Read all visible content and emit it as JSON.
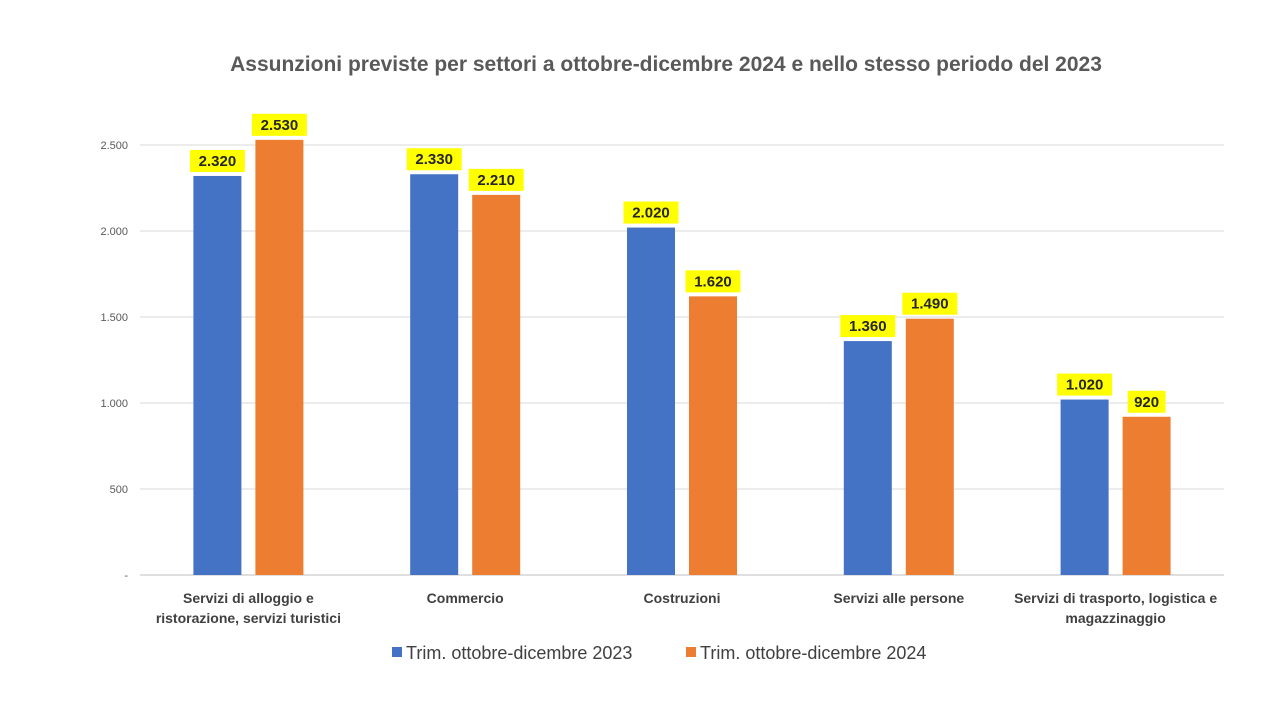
{
  "chart_data": {
    "type": "bar",
    "title": "Assunzioni previste per settori a ottobre-dicembre 2024 e nello stesso periodo del 2023",
    "categories": [
      [
        "Servizi di alloggio e",
        "ristorazione, servizi turistici"
      ],
      [
        "Commercio"
      ],
      [
        "Costruzioni"
      ],
      [
        "Servizi alle persone"
      ],
      [
        "Servizi di trasporto, logistica e",
        "magazzinaggio"
      ]
    ],
    "series": [
      {
        "name": "Trim. ottobre-dicembre 2023",
        "color": "#4472C4",
        "values": [
          2320,
          2330,
          2020,
          1360,
          1020
        ]
      },
      {
        "name": "Trim. ottobre-dicembre 2024",
        "color": "#ED7D31",
        "values": [
          2530,
          2210,
          1620,
          1490,
          920
        ]
      }
    ],
    "data_labels": [
      [
        "2.320",
        "2.330",
        "2.020",
        "1.360",
        "1.020"
      ],
      [
        "2.530",
        "2.210",
        "1.620",
        "1.490",
        "920"
      ]
    ],
    "label_highlight_color": "#FFFF00",
    "ylim": [
      0,
      2500
    ],
    "yticks": [
      0,
      500,
      1000,
      1500,
      2000,
      2500
    ],
    "ytick_labels": [
      "-",
      "500",
      "1.000",
      "1.500",
      "2.000",
      "2.500"
    ],
    "grid": true,
    "legend_position": "bottom"
  }
}
